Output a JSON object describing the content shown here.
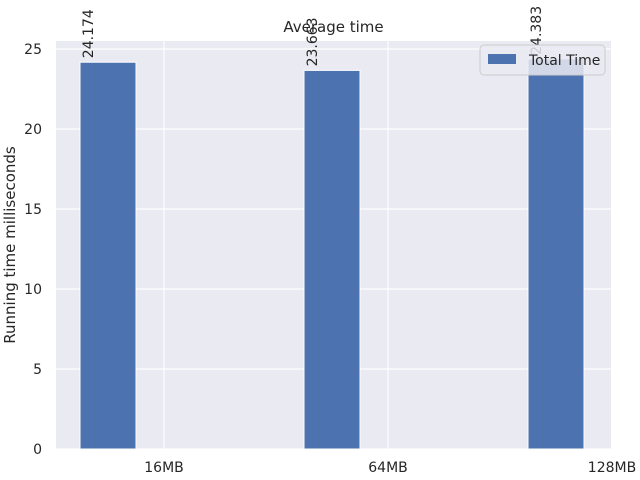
{
  "chart_data": {
    "type": "bar",
    "title": "Average time",
    "xlabel": "",
    "ylabel": "Running time milliseconds",
    "categories": [
      "16MB",
      "64MB",
      "128MB"
    ],
    "series": [
      {
        "name": "Total Time",
        "values": [
          24.174,
          23.663,
          24.383
        ],
        "color": "#4c72b0"
      }
    ],
    "bar_labels": [
      "24.174",
      "23.663",
      "24.383"
    ],
    "yticks": [
      0,
      5,
      10,
      15,
      20,
      25
    ],
    "ylim": [
      0,
      25.5
    ],
    "grid": true,
    "legend_position": "top-right",
    "background": "#eaeaf2"
  }
}
